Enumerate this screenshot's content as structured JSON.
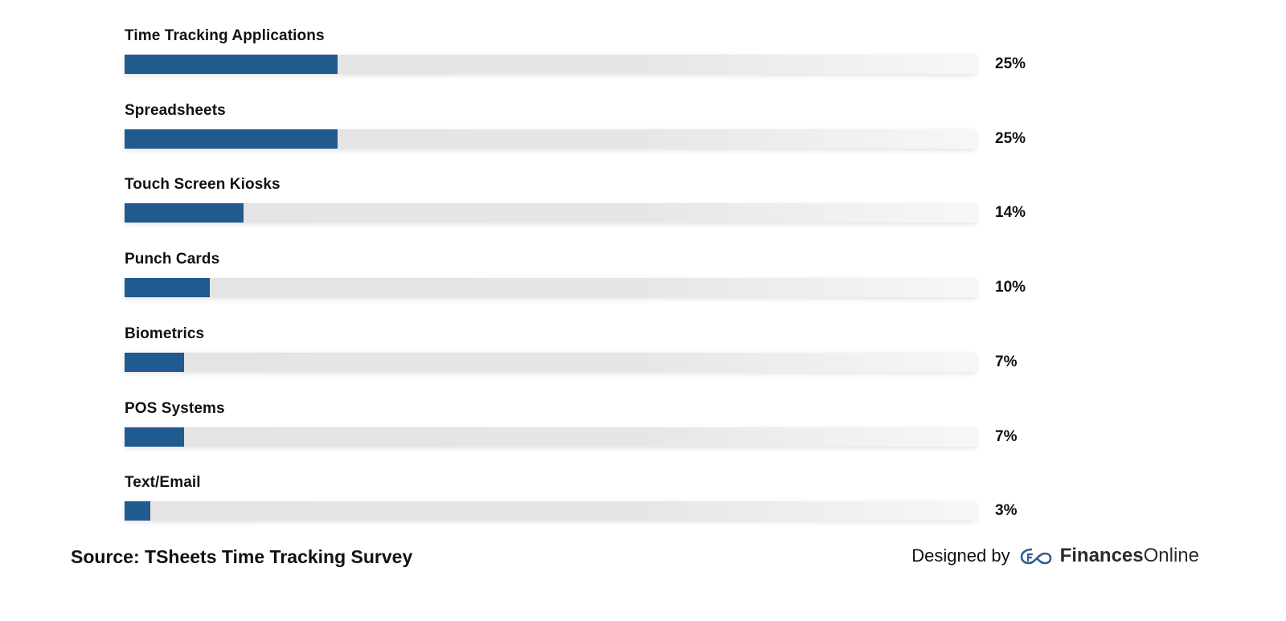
{
  "chart_data": {
    "type": "bar",
    "orientation": "horizontal",
    "categories": [
      "Time Tracking Applications",
      "Spreadsheets",
      "Touch Screen Kiosks",
      "Punch Cards",
      "Biometrics",
      "POS Systems",
      "Text/Email"
    ],
    "values": [
      25,
      25,
      14,
      10,
      7,
      7,
      3
    ],
    "value_labels": [
      "25%",
      "25%",
      "14%",
      "10%",
      "7%",
      "7%",
      "3%"
    ],
    "xlim": [
      0,
      100
    ],
    "grid": false,
    "legend": "none",
    "bar_color": "#215a8f",
    "track_color": "#e5e5e5"
  },
  "footer": {
    "source": "Source: TSheets Time Tracking Survey",
    "designed_by": "Designed by",
    "brand_strong": "Finances",
    "brand_light": "Online",
    "logo_icon": "financesonline-logo-icon"
  }
}
